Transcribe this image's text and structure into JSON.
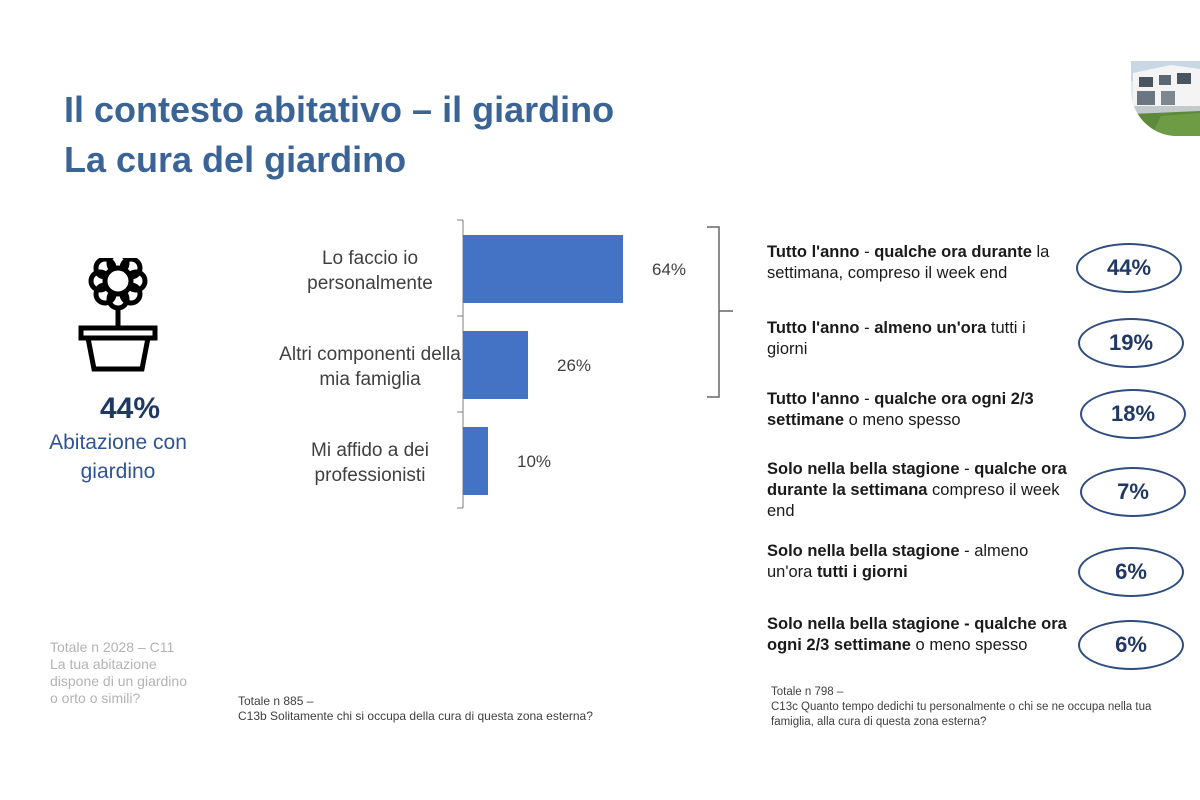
{
  "title": {
    "line1": "Il contesto abitativo – il giardino",
    "line2": "La cura del giardino"
  },
  "icons": {
    "flower": "flower-pot-icon",
    "photo": "house-garden-photo"
  },
  "colors": {
    "title": "#3a6496",
    "bar": "#4472c4",
    "pill_border": "#2f4d80",
    "dark_blue": "#1f3864"
  },
  "highlight": {
    "value": "44%",
    "label": "Abitazione con giardino"
  },
  "chart_data": {
    "type": "bar",
    "orientation": "horizontal",
    "categories": [
      "Lo faccio io personalmente",
      "Altri componenti della mia famiglia",
      "Mi affido a dei professionisti"
    ],
    "category_lines": [
      [
        "Lo faccio io",
        "personalmente"
      ],
      [
        "Altri componenti della",
        "mia famiglia"
      ],
      [
        "Mi affido a dei",
        "professionisti"
      ]
    ],
    "values": [
      64,
      26,
      10
    ],
    "value_labels": [
      "64%",
      "26%",
      "10%"
    ],
    "xlim": [
      0,
      100
    ],
    "legend": "none",
    "grid": false
  },
  "frequency": [
    {
      "segments": [
        [
          "b",
          "Tutto l'anno"
        ],
        [
          "n",
          " - "
        ],
        [
          "b",
          "qualche ora durante"
        ],
        [
          "n",
          " la settimana, compreso il week end"
        ]
      ],
      "value": "44%"
    },
    {
      "segments": [
        [
          "b",
          "Tutto l'anno"
        ],
        [
          "n",
          " - "
        ],
        [
          "b",
          "almeno un'ora"
        ],
        [
          "n",
          " tutti i giorni"
        ]
      ],
      "value": "19%"
    },
    {
      "segments": [
        [
          "b",
          "Tutto l'anno"
        ],
        [
          "n",
          " - "
        ],
        [
          "b",
          "qualche ora ogni 2/3 settimane"
        ],
        [
          "n",
          " o meno spesso"
        ]
      ],
      "value": "18%"
    },
    {
      "segments": [
        [
          "b",
          "Solo nella bella stagione"
        ],
        [
          "n",
          " - "
        ],
        [
          "b",
          "qualche ora durante la settimana"
        ],
        [
          "n",
          " compreso il week end"
        ]
      ],
      "value": "7%"
    },
    {
      "segments": [
        [
          "b",
          "Solo nella bella stagione"
        ],
        [
          "n",
          " - almeno un'ora "
        ],
        [
          "b",
          "tutti i giorni"
        ]
      ],
      "value": "6%"
    },
    {
      "segments": [
        [
          "b",
          "Solo nella bella stagione - qualche ora ogni 2/3 settimane"
        ],
        [
          "n",
          " o meno spesso"
        ]
      ],
      "value": "6%"
    }
  ],
  "notes": {
    "left": "Totale n 2028 – C11 La tua abitazione dispone di un giardino o orto o simili?",
    "mid_line1": "Totale n 885 –",
    "mid_line2": "C13b  Solitamente chi si occupa della cura di questa zona esterna?",
    "right_line1": "Totale n 798 –",
    "right_line2": "C13c Quanto tempo dedichi tu personalmente o chi se ne occupa nella tua famiglia, alla cura di questa zona esterna?"
  }
}
